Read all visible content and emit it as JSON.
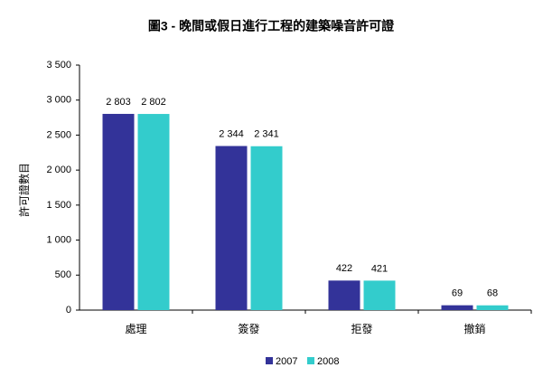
{
  "chart_data": {
    "type": "bar",
    "title": "圖3 - 晚間或假日進行工程的建築噪音許可證",
    "y_label": "許可證數目",
    "categories": [
      "處理",
      "簽發",
      "拒發",
      "撤銷"
    ],
    "series": [
      {
        "name": "2007",
        "color": "#333399",
        "values": [
          2803,
          2344,
          422,
          69
        ],
        "value_labels": [
          "2 803",
          "2 344",
          "422",
          "69"
        ]
      },
      {
        "name": "2008",
        "color": "#33cccc",
        "values": [
          2802,
          2341,
          421,
          68
        ],
        "value_labels": [
          "2 802",
          "2 341",
          "421",
          "68"
        ]
      }
    ],
    "ylim": [
      0,
      3500
    ],
    "yticks": [
      0,
      500,
      {
        "value": 1000,
        "label": "1 000"
      },
      {
        "value": 1500,
        "label": "1 500"
      },
      {
        "value": 2000,
        "label": "2 000"
      },
      {
        "value": 2500,
        "label": "2 500"
      },
      {
        "value": 3000,
        "label": "3 000"
      },
      {
        "value": 3500,
        "label": "3 500"
      }
    ],
    "grid": false,
    "legend": "bottom"
  }
}
